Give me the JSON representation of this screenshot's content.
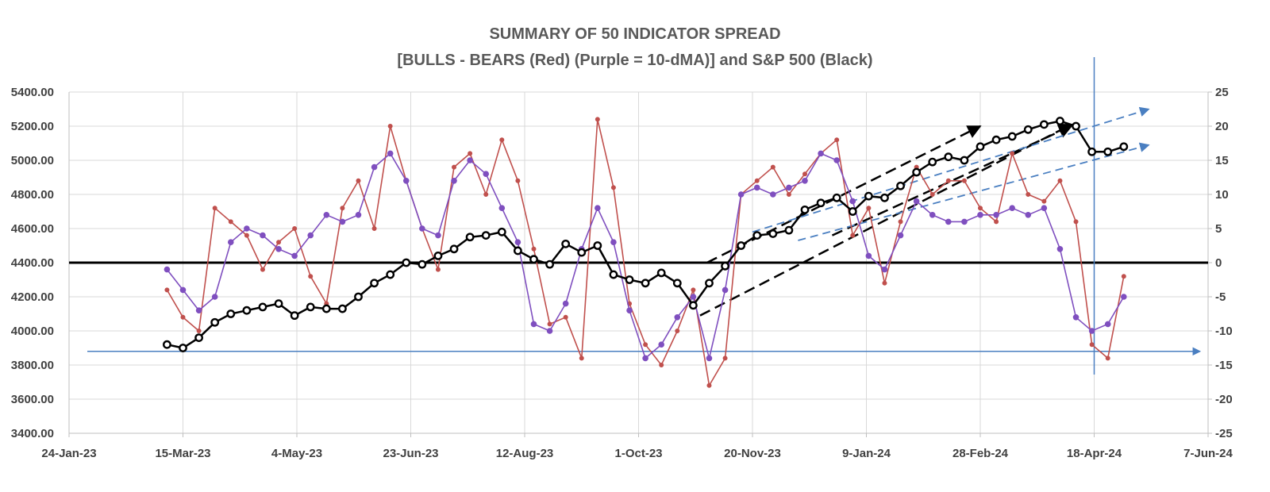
{
  "chart_data": {
    "type": "line",
    "title": "SUMMARY OF 50 INDICATOR SPREAD",
    "subtitle": "[BULLS - BEARS (Red) (Purple = 10-dMA)] and S&P 500 (Black)",
    "x_ticks": [
      "24-Jan-23",
      "15-Mar-23",
      "4-May-23",
      "23-Jun-23",
      "12-Aug-23",
      "1-Oct-23",
      "20-Nov-23",
      "9-Jan-24",
      "28-Feb-24",
      "18-Apr-24",
      "7-Jun-24"
    ],
    "left_axis": {
      "ticks": [
        "5400.00",
        "5200.00",
        "5000.00",
        "4800.00",
        "4600.00",
        "4400.00",
        "4200.00",
        "4000.00",
        "3800.00",
        "3600.00",
        "3400.00"
      ],
      "ylim": [
        3400,
        5400
      ]
    },
    "right_axis": {
      "ticks": [
        "25",
        "20",
        "15",
        "10",
        "5",
        "0",
        "-5",
        "-10",
        "-15",
        "-20",
        "-25"
      ],
      "ylim": [
        -25,
        25
      ]
    },
    "grid": true,
    "colors": {
      "bulls_bears": "#c0504d",
      "ma10": "#7f4fbf",
      "sp500": "#000000",
      "trend_blue": "#4a7fc1",
      "zero_line": "#000000"
    },
    "series": [
      {
        "axis": "right",
        "color": "#c0504d",
        "x": [
          "2023-03-08",
          "2023-03-15",
          "2023-03-22",
          "2023-03-29",
          "2023-04-05",
          "2023-04-12",
          "2023-04-19",
          "2023-04-26",
          "2023-05-03",
          "2023-05-10",
          "2023-05-17",
          "2023-05-24",
          "2023-05-31",
          "2023-06-07",
          "2023-06-14",
          "2023-06-21",
          "2023-06-28",
          "2023-07-05",
          "2023-07-12",
          "2023-07-19",
          "2023-07-26",
          "2023-08-02",
          "2023-08-09",
          "2023-08-16",
          "2023-08-23",
          "2023-08-30",
          "2023-09-06",
          "2023-09-13",
          "2023-09-20",
          "2023-09-27",
          "2023-10-04",
          "2023-10-11",
          "2023-10-18",
          "2023-10-25",
          "2023-11-01",
          "2023-11-08",
          "2023-11-15",
          "2023-11-22",
          "2023-11-29",
          "2023-12-06",
          "2023-12-13",
          "2023-12-20",
          "2023-12-27",
          "2024-01-03",
          "2024-01-10",
          "2024-01-17",
          "2024-01-24",
          "2024-01-31",
          "2024-02-07",
          "2024-02-14",
          "2024-02-21",
          "2024-02-28",
          "2024-03-06",
          "2024-03-13",
          "2024-03-20",
          "2024-03-27",
          "2024-04-03",
          "2024-04-10",
          "2024-04-17",
          "2024-04-24",
          "2024-05-01"
        ],
        "values": [
          -4,
          -8,
          -10,
          8,
          6,
          4,
          -1,
          3,
          5,
          -2,
          -6,
          8,
          12,
          5,
          20,
          12,
          5,
          -1,
          14,
          16,
          10,
          18,
          12,
          2,
          -9,
          -8,
          -14,
          21,
          11,
          -6,
          -12,
          -15,
          -10,
          -4,
          -18,
          -14,
          10,
          12,
          14,
          10,
          13,
          16,
          18,
          4,
          8,
          -3,
          6,
          14,
          10,
          12,
          12,
          8,
          6,
          16,
          10,
          9,
          12,
          6,
          -12,
          -14,
          -2
        ],
        "size_note": ""
      },
      {
        "axis": "right",
        "color": "#7f4fbf",
        "x": [
          "2023-03-08",
          "2023-03-15",
          "2023-03-22",
          "2023-03-29",
          "2023-04-05",
          "2023-04-12",
          "2023-04-19",
          "2023-04-26",
          "2023-05-03",
          "2023-05-10",
          "2023-05-17",
          "2023-05-24",
          "2023-05-31",
          "2023-06-07",
          "2023-06-14",
          "2023-06-21",
          "2023-06-28",
          "2023-07-05",
          "2023-07-12",
          "2023-07-19",
          "2023-07-26",
          "2023-08-02",
          "2023-08-09",
          "2023-08-16",
          "2023-08-23",
          "2023-08-30",
          "2023-09-06",
          "2023-09-13",
          "2023-09-20",
          "2023-09-27",
          "2023-10-04",
          "2023-10-11",
          "2023-10-18",
          "2023-10-25",
          "2023-11-01",
          "2023-11-08",
          "2023-11-15",
          "2023-11-22",
          "2023-11-29",
          "2023-12-06",
          "2023-12-13",
          "2023-12-20",
          "2023-12-27",
          "2024-01-03",
          "2024-01-10",
          "2024-01-17",
          "2024-01-24",
          "2024-01-31",
          "2024-02-07",
          "2024-02-14",
          "2024-02-21",
          "2024-02-28",
          "2024-03-06",
          "2024-03-13",
          "2024-03-20",
          "2024-03-27",
          "2024-04-03",
          "2024-04-10",
          "2024-04-17",
          "2024-04-24",
          "2024-05-01"
        ],
        "values": [
          -1,
          -4,
          -7,
          -5,
          3,
          5,
          4,
          2,
          1,
          4,
          7,
          6,
          7,
          14,
          16,
          12,
          5,
          4,
          12,
          15,
          13,
          8,
          3,
          -9,
          -10,
          -6,
          2,
          8,
          3,
          -7,
          -14,
          -12,
          -8,
          -5,
          -14,
          -4,
          10,
          11,
          10,
          11,
          12,
          16,
          15,
          9,
          1,
          -1,
          4,
          9,
          7,
          6,
          6,
          7,
          7,
          8,
          7,
          8,
          2,
          -8,
          -10,
          -9,
          -5
        ]
      },
      {
        "axis": "left",
        "color": "#000000",
        "x": [
          "2023-03-08",
          "2023-03-15",
          "2023-03-22",
          "2023-03-29",
          "2023-04-05",
          "2023-04-12",
          "2023-04-19",
          "2023-04-26",
          "2023-05-03",
          "2023-05-10",
          "2023-05-17",
          "2023-05-24",
          "2023-05-31",
          "2023-06-07",
          "2023-06-14",
          "2023-06-21",
          "2023-06-28",
          "2023-07-05",
          "2023-07-12",
          "2023-07-19",
          "2023-07-26",
          "2023-08-02",
          "2023-08-09",
          "2023-08-16",
          "2023-08-23",
          "2023-08-30",
          "2023-09-06",
          "2023-09-13",
          "2023-09-20",
          "2023-09-27",
          "2023-10-04",
          "2023-10-11",
          "2023-10-18",
          "2023-10-25",
          "2023-11-01",
          "2023-11-08",
          "2023-11-15",
          "2023-11-22",
          "2023-11-29",
          "2023-12-06",
          "2023-12-13",
          "2023-12-20",
          "2023-12-27",
          "2024-01-03",
          "2024-01-10",
          "2024-01-17",
          "2024-01-24",
          "2024-01-31",
          "2024-02-07",
          "2024-02-14",
          "2024-02-21",
          "2024-02-28",
          "2024-03-06",
          "2024-03-13",
          "2024-03-20",
          "2024-03-27",
          "2024-04-03",
          "2024-04-10",
          "2024-04-17",
          "2024-04-24",
          "2024-05-01"
        ],
        "values": [
          3920,
          3900,
          3960,
          4050,
          4100,
          4120,
          4140,
          4160,
          4090,
          4140,
          4130,
          4130,
          4200,
          4280,
          4330,
          4400,
          4390,
          4440,
          4480,
          4550,
          4560,
          4580,
          4470,
          4420,
          4390,
          4510,
          4460,
          4500,
          4330,
          4300,
          4280,
          4340,
          4280,
          4150,
          4280,
          4380,
          4500,
          4560,
          4570,
          4590,
          4710,
          4750,
          4780,
          4700,
          4790,
          4780,
          4850,
          4930,
          4990,
          5020,
          5000,
          5080,
          5120,
          5140,
          5180,
          5210,
          5230,
          5200,
          5050,
          5050,
          5080
        ]
      }
    ],
    "annotations": {
      "zero_line_value": 0,
      "horizontal_blue_line": 3880,
      "vertical_blue_line_date": "2024-04-18",
      "black_dashed_channel": [
        {
          "from": [
            "2023-10-31",
            4400
          ],
          "to": [
            "2024-02-28",
            5200
          ]
        },
        {
          "from": [
            "2023-10-28",
            4090
          ],
          "to": [
            "2024-04-08",
            5210
          ]
        },
        {
          "from": [
            "2023-12-25",
            4560
          ],
          "to": [
            "2024-04-08",
            5200
          ]
        }
      ],
      "blue_dashed_lines": [
        {
          "from": [
            "2023-11-20",
            4580
          ],
          "to": [
            "2024-05-12",
            5300
          ]
        },
        {
          "from": [
            "2023-12-10",
            4530
          ],
          "to": [
            "2024-05-12",
            5090
          ]
        }
      ]
    }
  }
}
